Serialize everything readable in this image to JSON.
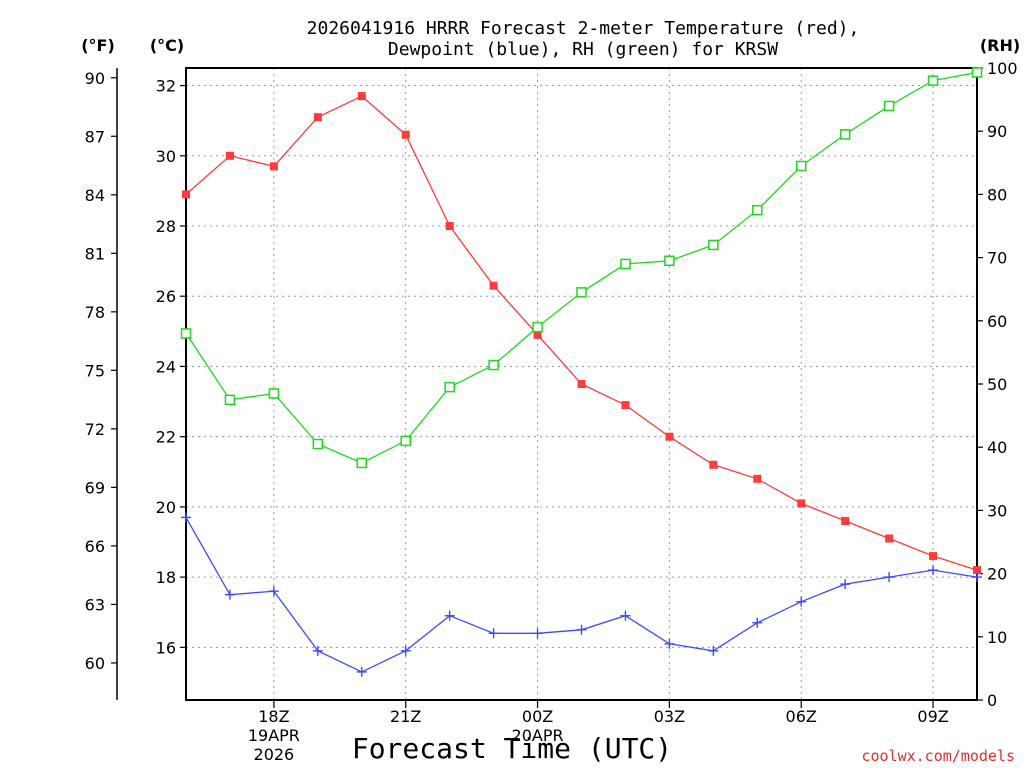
{
  "chart_data": {
    "type": "line",
    "title": [
      "2026041916 HRRR Forecast 2-meter Temperature (red),",
      "Dewpoint (blue), RH (green) for KRSW"
    ],
    "xlabel": "Forecast Time (UTC)",
    "left_units": [
      "(°F)",
      "(°C)"
    ],
    "right_unit": "(RH)",
    "hours": [
      0,
      1,
      2,
      3,
      4,
      5,
      6,
      7,
      8,
      9,
      10,
      11,
      12,
      13,
      14,
      15,
      16,
      17,
      18
    ],
    "x_ticks": [
      {
        "hour": 2,
        "lines": [
          "18Z",
          "19APR",
          "2026"
        ]
      },
      {
        "hour": 5,
        "lines": [
          "21Z"
        ]
      },
      {
        "hour": 8,
        "lines": [
          "00Z",
          "20APR"
        ]
      },
      {
        "hour": 11,
        "lines": [
          "03Z"
        ]
      },
      {
        "hour": 14,
        "lines": [
          "06Z"
        ]
      },
      {
        "hour": 17,
        "lines": [
          "09Z"
        ]
      }
    ],
    "celsius_axis": {
      "range": [
        14.5,
        32.5
      ],
      "ticks": [
        16,
        18,
        20,
        22,
        24,
        26,
        28,
        30,
        32
      ]
    },
    "fahrenheit_axis": {
      "ticks": [
        60,
        63,
        66,
        69,
        72,
        75,
        78,
        81,
        84,
        87,
        90
      ]
    },
    "rh_axis": {
      "range": [
        0,
        100
      ],
      "ticks": [
        0,
        10,
        20,
        30,
        40,
        50,
        60,
        70,
        80,
        90,
        100
      ]
    },
    "series": [
      {
        "name": "Temperature",
        "unit": "C",
        "color": "#ff3b3b",
        "marker": "filled-square",
        "values": [
          28.9,
          30.0,
          29.7,
          31.1,
          31.7,
          30.6,
          28.0,
          26.3,
          24.9,
          23.5,
          22.9,
          22.0,
          21.2,
          20.8,
          20.1,
          19.6,
          19.1,
          18.6,
          18.2
        ]
      },
      {
        "name": "Dewpoint",
        "unit": "C",
        "color": "#3a4bff",
        "marker": "plus",
        "values": [
          19.7,
          17.5,
          17.6,
          15.9,
          15.3,
          15.9,
          16.9,
          16.4,
          16.4,
          16.5,
          16.9,
          16.1,
          15.9,
          16.7,
          17.3,
          17.8,
          18.0,
          18.2,
          18.0
        ]
      },
      {
        "name": "RH",
        "unit": "%",
        "color": "#1fd81f",
        "marker": "open-square",
        "values": [
          58.0,
          47.5,
          48.5,
          40.5,
          37.5,
          41.0,
          49.5,
          53.0,
          59.0,
          64.5,
          69.0,
          69.5,
          72.0,
          77.5,
          84.5,
          89.5,
          94.0,
          98.0,
          99.3
        ]
      }
    ]
  },
  "credit": "coolwx.com/models"
}
